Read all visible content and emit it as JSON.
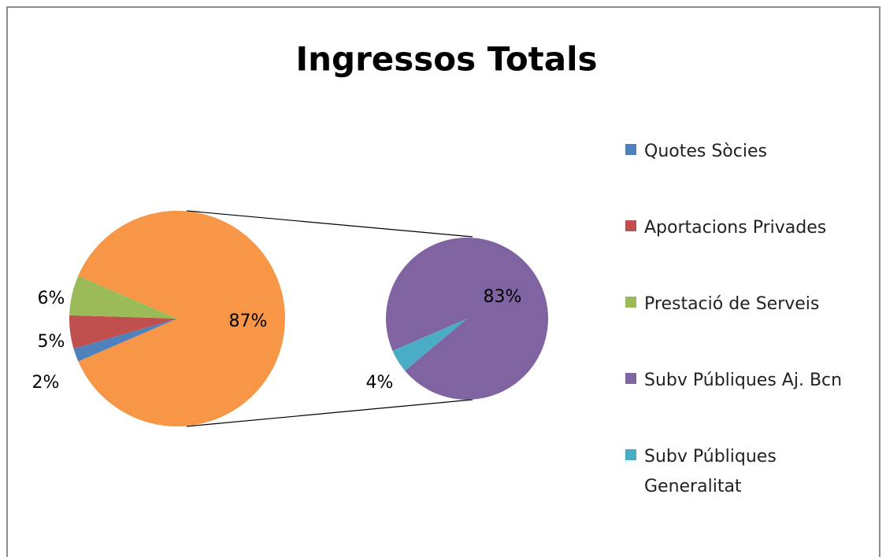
{
  "chart_data": {
    "type": "pie",
    "title": "Ingressos Totals",
    "categories": [
      "Quotes Sòcies",
      "Aportacions Privades",
      "Prestació de Serveis",
      "Subv Públiques Aj. Bcn",
      "Subv Públiques Generalitat"
    ],
    "values": [
      2,
      5,
      6,
      83,
      4
    ],
    "value_labels": [
      "2%",
      "5%",
      "6%",
      "83%",
      "4%"
    ],
    "colors": [
      "#4f81bd",
      "#c0504d",
      "#9bbb59",
      "#8064a2",
      "#4bacc6"
    ],
    "other_value": 87,
    "other_label": "87%",
    "other_color": "#f79646",
    "legend": "right"
  }
}
